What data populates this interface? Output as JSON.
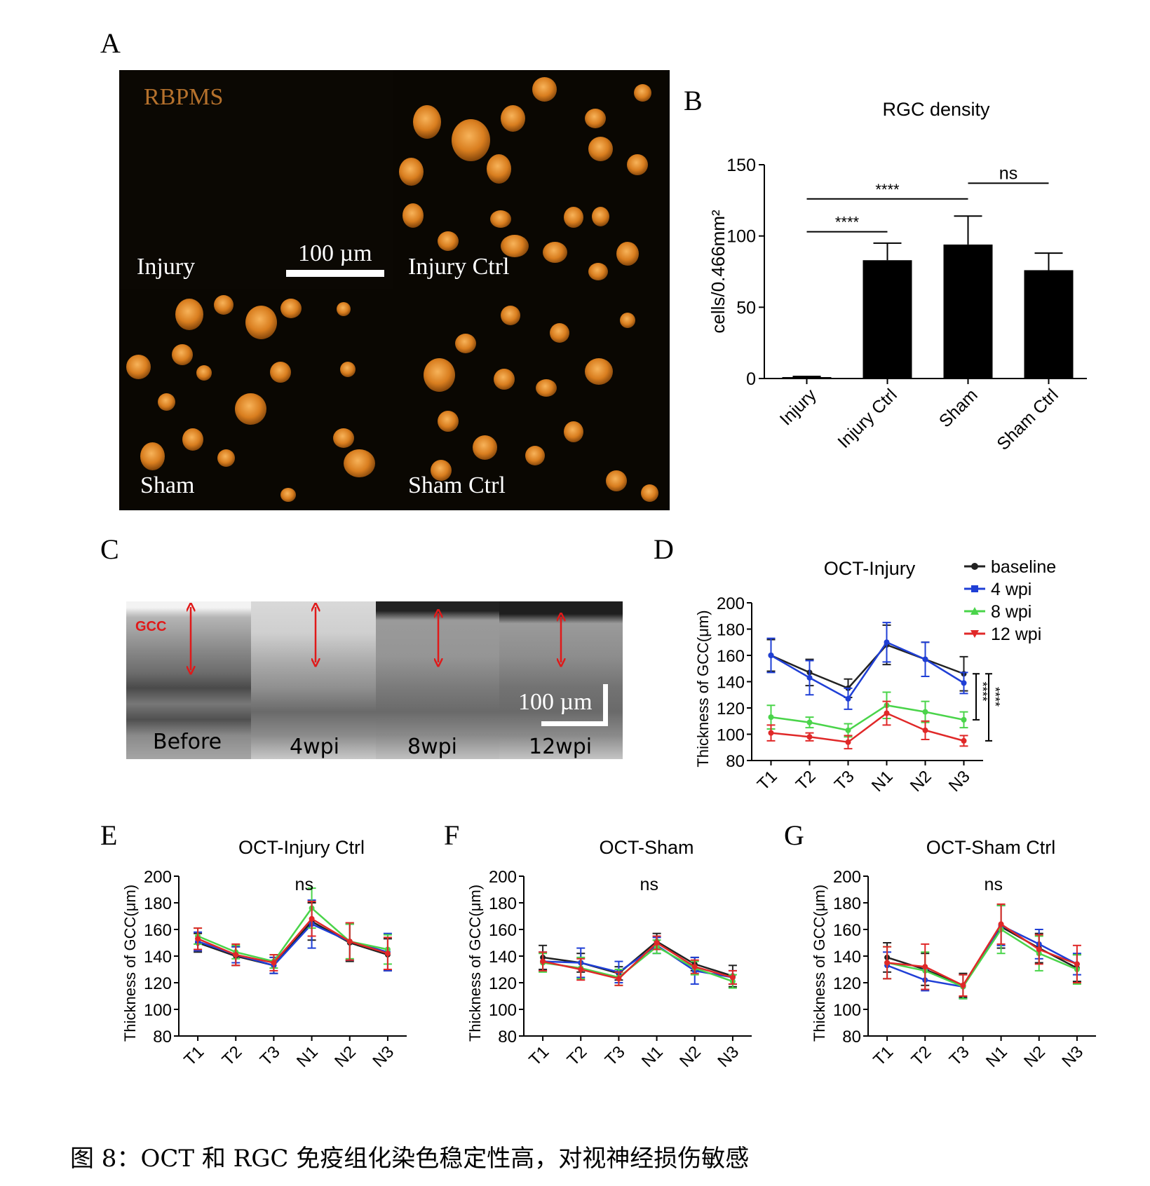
{
  "panel_letters": {
    "A": "A",
    "B": "B",
    "C": "C",
    "D": "D",
    "E": "E",
    "F": "F",
    "G": "G"
  },
  "panelA": {
    "stain": "RBPMS",
    "scale": "100 µm",
    "labels": [
      "Injury",
      "Injury Ctrl",
      "Sham",
      "Sham Ctrl"
    ]
  },
  "panelC": {
    "gcc": "GCC",
    "scale": "100 µm",
    "labels": [
      "Before",
      "4wpi",
      "8wpi",
      "12wpi"
    ]
  },
  "chart_data": [
    {
      "id": "B",
      "type": "bar",
      "title": "RGC density",
      "ylabel": "cells/0.466mm²",
      "ylim": [
        0,
        150
      ],
      "yticks": [
        0,
        50,
        100,
        150
      ],
      "categories": [
        "Injury",
        "Injury Ctrl",
        "Sham",
        "Sham Ctrl"
      ],
      "values": [
        1,
        83,
        94,
        76
      ],
      "errors": [
        0.5,
        12,
        20,
        12
      ],
      "annotations": [
        {
          "text": "****",
          "from": "Injury",
          "to": "Injury Ctrl",
          "y": 103
        },
        {
          "text": "****",
          "from": "Injury",
          "to": "Sham",
          "y": 126
        },
        {
          "text": "ns",
          "from": "Sham",
          "to": "Sham Ctrl",
          "y": 137
        }
      ]
    },
    {
      "id": "D",
      "type": "line",
      "title": "OCT-Injury",
      "ylabel": "Thickness of GCC(μm)",
      "ylim": [
        80,
        200
      ],
      "yticks": [
        80,
        100,
        120,
        140,
        160,
        180,
        200
      ],
      "categories": [
        "T1",
        "T2",
        "T3",
        "N1",
        "N2",
        "N3"
      ],
      "legend": [
        "baseline",
        "4 wpi",
        "8 wpi",
        "12 wpi"
      ],
      "series": [
        {
          "name": "baseline",
          "color": "#222222",
          "values": [
            160,
            147,
            135,
            168,
            157,
            146
          ],
          "errors": [
            12,
            10,
            7,
            15,
            13,
            13
          ]
        },
        {
          "name": "4 wpi",
          "color": "#1f3fd6",
          "values": [
            160,
            143,
            127,
            170,
            157,
            139
          ],
          "errors": [
            13,
            13,
            8,
            15,
            13,
            8
          ]
        },
        {
          "name": "8 wpi",
          "color": "#4ad44a",
          "values": [
            113,
            109,
            103,
            122,
            117,
            111
          ],
          "errors": [
            9,
            4,
            5,
            10,
            8,
            6
          ]
        },
        {
          "name": "12 wpi",
          "color": "#e02828",
          "values": [
            101,
            98,
            94,
            116,
            103,
            95
          ],
          "errors": [
            6,
            3,
            5,
            9,
            7,
            4
          ]
        }
      ],
      "sig": [
        "****",
        "****"
      ]
    },
    {
      "id": "E",
      "type": "line",
      "title": "OCT-Injury Ctrl",
      "ylabel": "Thickness of GCC(μm)",
      "ylim": [
        80,
        200
      ],
      "yticks": [
        80,
        100,
        120,
        140,
        160,
        180,
        200
      ],
      "categories": [
        "T1",
        "T2",
        "T3",
        "N1",
        "N2",
        "N3"
      ],
      "annotation": "ns",
      "series": [
        {
          "color": "#222222",
          "values": [
            150,
            140,
            133,
            166,
            150,
            141
          ],
          "errors": [
            7,
            7,
            6,
            14,
            14,
            12
          ]
        },
        {
          "color": "#1f3fd6",
          "values": [
            151,
            141,
            133,
            164,
            151,
            143
          ],
          "errors": [
            7,
            6,
            6,
            18,
            14,
            14
          ]
        },
        {
          "color": "#4ad44a",
          "values": [
            155,
            143,
            136,
            176,
            151,
            145
          ],
          "errors": [
            6,
            5,
            5,
            15,
            13,
            11
          ]
        },
        {
          "color": "#e02828",
          "values": [
            153,
            141,
            135,
            168,
            151,
            142
          ],
          "errors": [
            8,
            8,
            6,
            13,
            14,
            12
          ]
        }
      ]
    },
    {
      "id": "F",
      "type": "line",
      "title": "OCT-Sham",
      "ylabel": "Thickness of GCC(μm)",
      "ylim": [
        80,
        200
      ],
      "yticks": [
        80,
        100,
        120,
        140,
        160,
        180,
        200
      ],
      "categories": [
        "T1",
        "T2",
        "T3",
        "N1",
        "N2",
        "N3"
      ],
      "annotation": "ns",
      "series": [
        {
          "color": "#222222",
          "values": [
            139,
            135,
            127,
            151,
            134,
            125
          ],
          "errors": [
            9,
            7,
            5,
            6,
            5,
            8
          ]
        },
        {
          "color": "#1f3fd6",
          "values": [
            136,
            135,
            128,
            148,
            129,
            124
          ],
          "errors": [
            7,
            11,
            8,
            6,
            10,
            5
          ]
        },
        {
          "color": "#4ad44a",
          "values": [
            135,
            131,
            124,
            147,
            131,
            121
          ],
          "errors": [
            7,
            8,
            6,
            5,
            5,
            5
          ]
        },
        {
          "color": "#e02828",
          "values": [
            136,
            130,
            123,
            150,
            132,
            124
          ],
          "errors": [
            7,
            8,
            5,
            5,
            5,
            5
          ]
        }
      ]
    },
    {
      "id": "G",
      "type": "line",
      "title": "OCT-Sham Ctrl",
      "ylabel": "Thickness of GCC(μm)",
      "ylim": [
        80,
        200
      ],
      "yticks": [
        80,
        100,
        120,
        140,
        160,
        180,
        200
      ],
      "categories": [
        "T1",
        "T2",
        "T3",
        "N1",
        "N2",
        "N3"
      ],
      "annotation": "ns",
      "series": [
        {
          "color": "#222222",
          "values": [
            139,
            130,
            118,
            162,
            146,
            131
          ],
          "errors": [
            11,
            12,
            9,
            16,
            11,
            10
          ]
        },
        {
          "color": "#1f3fd6",
          "values": [
            133,
            122,
            117,
            163,
            149,
            134
          ],
          "errors": [
            10,
            8,
            9,
            15,
            11,
            8
          ]
        },
        {
          "color": "#4ad44a",
          "values": [
            135,
            129,
            117,
            160,
            142,
            130
          ],
          "errors": [
            12,
            14,
            9,
            18,
            13,
            11
          ]
        },
        {
          "color": "#e02828",
          "values": [
            135,
            132,
            118,
            164,
            145,
            134
          ],
          "errors": [
            12,
            17,
            8,
            15,
            11,
            14
          ]
        }
      ]
    }
  ],
  "caption": "图 8：OCT 和 RGC 免疫组化染色稳定性高，对视神经损伤敏感"
}
